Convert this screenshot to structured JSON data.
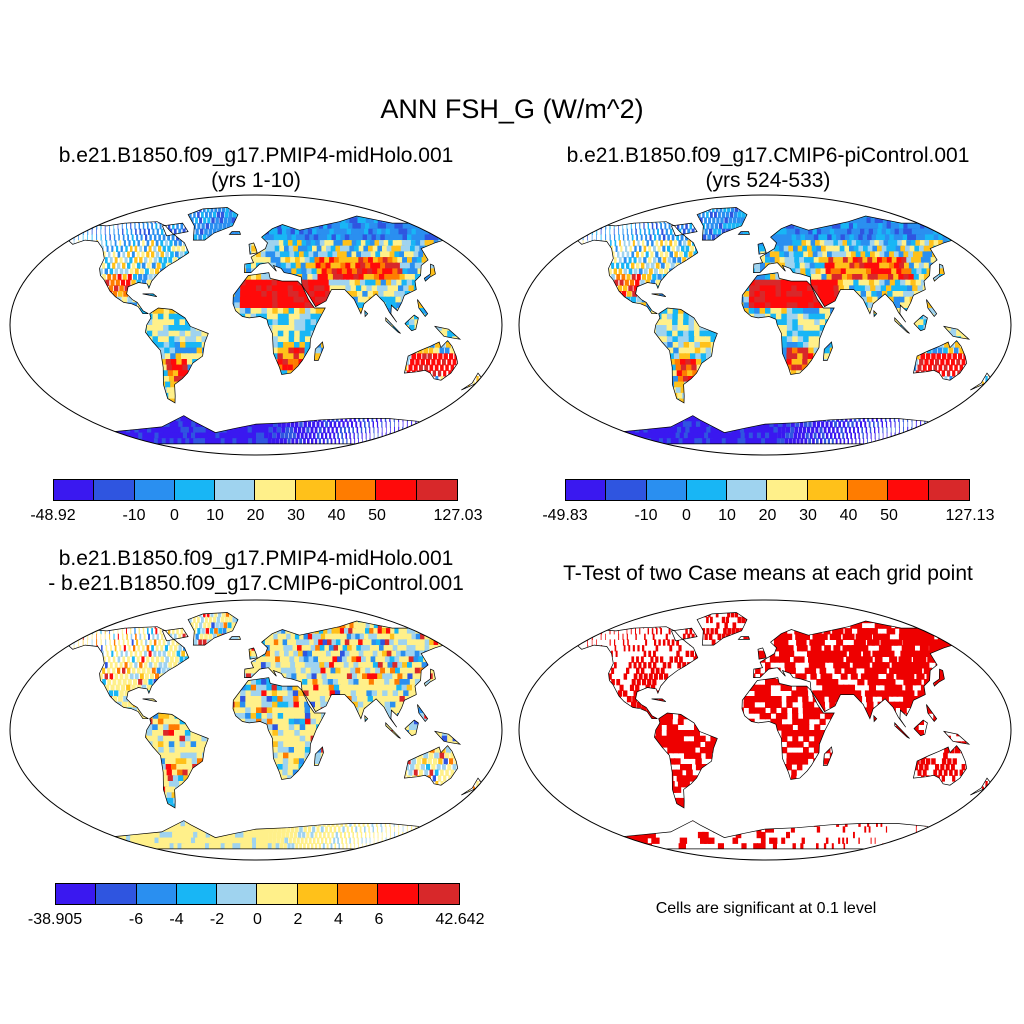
{
  "title": "ANN FSH_G (W/m^2)",
  "panels": [
    {
      "title": "b.e21.B1850.f09_g17.PMIP4-midHolo.001",
      "subtitle": "(yrs 1-10)"
    },
    {
      "title": "b.e21.B1850.f09_g17.CMIP6-piControl.001",
      "subtitle": "(yrs 524-533)"
    },
    {
      "title": "b.e21.B1850.f09_g17.PMIP4-midHolo.001",
      "subtitle": "- b.e21.B1850.f09_g17.CMIP6-piControl.001"
    },
    {
      "title": "T-Test of two Case means at each grid point",
      "subtitle": ""
    }
  ],
  "colorbars": [
    {
      "labels": [
        "-48.92",
        "-10",
        "0",
        "10",
        "20",
        "30",
        "40",
        "50",
        "127.03"
      ]
    },
    {
      "labels": [
        "-49.83",
        "-10",
        "0",
        "10",
        "20",
        "30",
        "40",
        "50",
        "127.13"
      ]
    },
    {
      "labels": [
        "-38.905",
        "-6",
        "-4",
        "-2",
        "0",
        "2",
        "4",
        "6",
        "42.642"
      ]
    }
  ],
  "palette": [
    "#3a18f0",
    "#2f55e0",
    "#2a8ff0",
    "#18b6f5",
    "#9fd3ef",
    "#fff08a",
    "#ffc11a",
    "#ff7c00",
    "#ff0a0a",
    "#d8282a"
  ],
  "significance_color": "#ee0000",
  "note": "Cells are significant at 0.1 level"
}
